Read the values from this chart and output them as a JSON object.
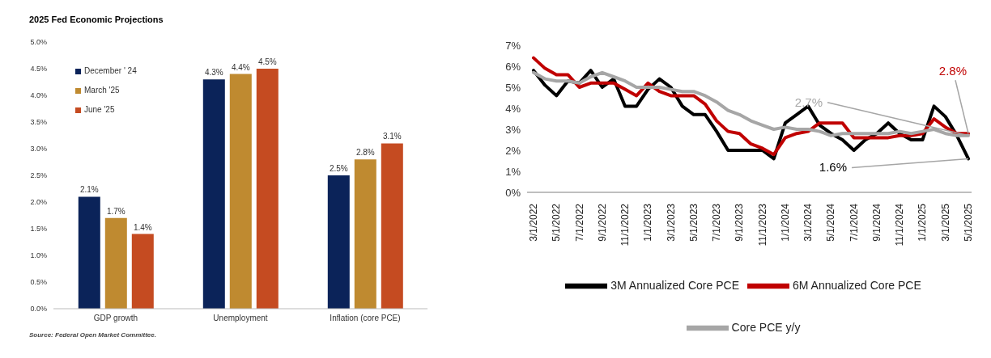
{
  "chart_data": [
    {
      "type": "bar",
      "title": "2025 Fed Economic Projections",
      "categories": [
        "GDP growth",
        "Unemployment",
        "Inflation (core PCE)"
      ],
      "series": [
        {
          "name": "December ' 24",
          "color": "#0b2359",
          "values": [
            2.1,
            4.3,
            2.5
          ],
          "value_labels": [
            "2.1%",
            "4.3%",
            "2.5%"
          ]
        },
        {
          "name": "March '25",
          "color": "#bf8a30",
          "values": [
            1.7,
            4.4,
            2.8
          ],
          "value_labels": [
            "1.7%",
            "4.4%",
            "2.8%"
          ]
        },
        {
          "name": "June '25",
          "color": "#c54b21",
          "values": [
            1.4,
            4.5,
            3.1
          ],
          "value_labels": [
            "1.4%",
            "4.5%",
            "3.1%"
          ]
        }
      ],
      "ylim": [
        0,
        5
      ],
      "yticks": [
        {
          "value": 0,
          "label": "0.0%"
        },
        {
          "value": 0.5,
          "label": "0.5%"
        },
        {
          "value": 1,
          "label": "1.0%"
        },
        {
          "value": 1.5,
          "label": "1.5%"
        },
        {
          "value": 2,
          "label": "2.0%"
        },
        {
          "value": 2.5,
          "label": "2.5%"
        },
        {
          "value": 3,
          "label": "3.0%"
        },
        {
          "value": 3.5,
          "label": "3.5%"
        },
        {
          "value": 4,
          "label": "4.0%"
        },
        {
          "value": 4.5,
          "label": "4.5%"
        },
        {
          "value": 5,
          "label": "5.0%"
        }
      ],
      "grid": false,
      "legend": "top left",
      "annotations": [
        "Source: Federal Open Market Committee."
      ]
    },
    {
      "type": "line",
      "categories": [
        "3/1/2022",
        null,
        "5/1/2022",
        null,
        "7/1/2022",
        null,
        "9/1/2022",
        null,
        "11/1/2022",
        null,
        "1/1/2023",
        null,
        "3/1/2023",
        null,
        "5/1/2023",
        null,
        "7/1/2023",
        null,
        "9/1/2023",
        null,
        "11/1/2023",
        null,
        "1/1/2024",
        null,
        "3/1/2024",
        null,
        "5/1/2024",
        null,
        "7/1/2024",
        null,
        "9/1/2024",
        null,
        "11/1/2024",
        null,
        "1/1/2025",
        null,
        "3/1/2025",
        null,
        "5/1/2025"
      ],
      "series": [
        {
          "name": "3M Annualized Core PCE",
          "color": "#000000",
          "values": [
            5.8,
            5.1,
            4.6,
            5.3,
            5.2,
            5.8,
            5.0,
            5.4,
            4.1,
            4.1,
            4.9,
            5.4,
            5.0,
            4.1,
            3.7,
            3.7,
            2.9,
            2.0,
            2.0,
            2.0,
            2.0,
            1.6,
            3.3,
            3.7,
            4.1,
            3.2,
            2.8,
            2.5,
            2.0,
            2.5,
            2.8,
            3.3,
            2.8,
            2.5,
            2.5,
            4.1,
            3.6,
            2.7,
            1.6
          ]
        },
        {
          "name": "6M Annualized Core PCE",
          "color": "#c00000",
          "values": [
            6.4,
            5.9,
            5.6,
            5.6,
            5.0,
            5.2,
            5.2,
            5.2,
            4.9,
            4.6,
            5.2,
            4.8,
            4.6,
            4.6,
            4.6,
            4.2,
            3.4,
            2.9,
            2.8,
            2.3,
            2.1,
            1.8,
            2.6,
            2.8,
            2.9,
            3.3,
            3.3,
            3.3,
            2.6,
            2.6,
            2.6,
            2.6,
            2.7,
            2.7,
            2.8,
            3.5,
            3.1,
            2.8,
            2.8
          ]
        },
        {
          "name": "Core PCE y/y",
          "color": "#a6a6a6",
          "values": [
            5.7,
            5.4,
            5.3,
            5.3,
            5.2,
            5.5,
            5.7,
            5.5,
            5.3,
            5.0,
            5.0,
            5.0,
            4.9,
            4.8,
            4.8,
            4.6,
            4.3,
            3.9,
            3.7,
            3.4,
            3.2,
            3.0,
            3.1,
            3.0,
            3.0,
            2.9,
            2.7,
            2.8,
            2.8,
            2.8,
            2.8,
            2.8,
            2.9,
            2.8,
            2.9,
            3.0,
            2.8,
            2.7,
            2.7
          ]
        }
      ],
      "ylim": [
        0,
        7
      ],
      "yticks": [
        {
          "value": 0,
          "label": "0%"
        },
        {
          "value": 1,
          "label": "1%"
        },
        {
          "value": 2,
          "label": "2%"
        },
        {
          "value": 3,
          "label": "3%"
        },
        {
          "value": 4,
          "label": "4%"
        },
        {
          "value": 5,
          "label": "5%"
        },
        {
          "value": 6,
          "label": "6%"
        },
        {
          "value": 7,
          "label": "7%"
        }
      ],
      "grid": false,
      "legend": "bottom",
      "marker": "none",
      "line_style": "solid",
      "annotations": [
        {
          "text": "2.8%",
          "x": "5/1/2025",
          "y": 2.8
        },
        {
          "text": "2.7%",
          "x": "5/1/2025",
          "y": 2.7
        },
        {
          "text": "1.6%",
          "x": "5/1/2025",
          "y": 1.6
        }
      ]
    }
  ]
}
